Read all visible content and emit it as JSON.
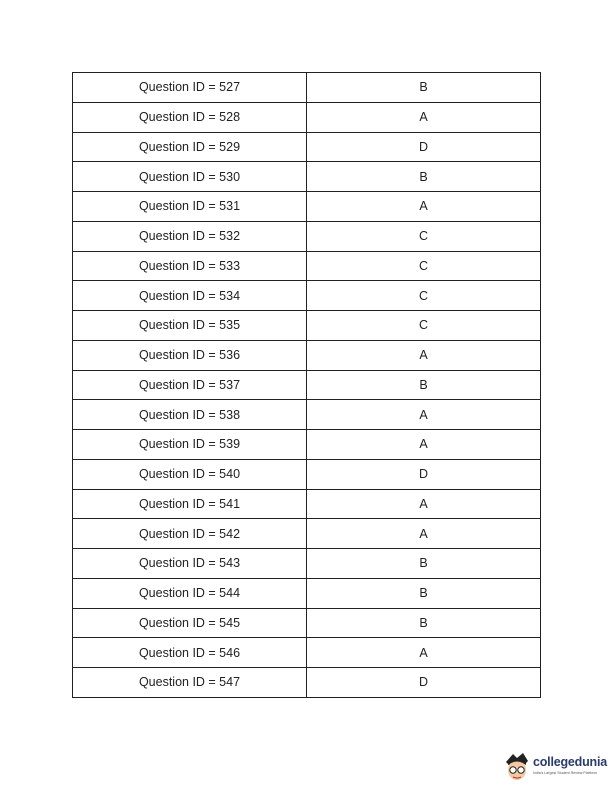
{
  "answer_key": [
    {
      "question": "Question ID = 527",
      "answer": "B"
    },
    {
      "question": "Question ID = 528",
      "answer": "A"
    },
    {
      "question": "Question ID = 529",
      "answer": "D"
    },
    {
      "question": "Question ID = 530",
      "answer": "B"
    },
    {
      "question": "Question ID = 531",
      "answer": "A"
    },
    {
      "question": "Question ID = 532",
      "answer": "C"
    },
    {
      "question": "Question ID = 533",
      "answer": "C"
    },
    {
      "question": "Question ID = 534",
      "answer": "C"
    },
    {
      "question": "Question ID = 535",
      "answer": "C"
    },
    {
      "question": "Question ID = 536",
      "answer": "A"
    },
    {
      "question": "Question ID = 537",
      "answer": "B"
    },
    {
      "question": "Question ID = 538",
      "answer": "A"
    },
    {
      "question": "Question ID = 539",
      "answer": "A"
    },
    {
      "question": "Question ID = 540",
      "answer": "D"
    },
    {
      "question": "Question ID = 541",
      "answer": "A"
    },
    {
      "question": "Question ID = 542",
      "answer": "A"
    },
    {
      "question": "Question ID = 543",
      "answer": "B"
    },
    {
      "question": "Question ID = 544",
      "answer": "B"
    },
    {
      "question": "Question ID = 545",
      "answer": "B"
    },
    {
      "question": "Question ID = 546",
      "answer": "A"
    },
    {
      "question": "Question ID = 547",
      "answer": "D"
    }
  ],
  "logo": {
    "name": "collegedunia",
    "tagline": "India's Largest Student Review Platform",
    "color": "#2b3b6b"
  }
}
